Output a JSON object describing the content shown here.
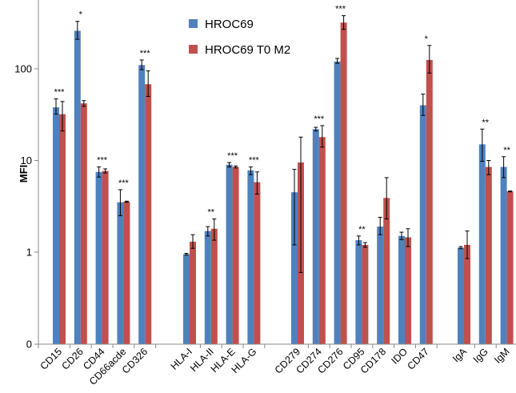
{
  "chart_data": {
    "type": "bar",
    "title": "",
    "xlabel": "",
    "ylabel": "MFI",
    "yscale": "log",
    "ylim": [
      0.1,
      400
    ],
    "yticks": [
      0.1,
      1,
      10,
      100
    ],
    "ytick_labels": [
      "0",
      "1",
      "10",
      "100"
    ],
    "grid": false,
    "legend_position": "top-center",
    "categories": [
      "CD15",
      "CD26",
      "CD44",
      "CD66acde",
      "CD326",
      "HLA-I",
      "HLA-II",
      "HLA-E",
      "HLA-G",
      "CD279",
      "CD274",
      "CD276",
      "CD95",
      "CD178",
      "IDO",
      "CD47",
      "IgA",
      "IgG",
      "IgM"
    ],
    "groups": [
      [
        "CD15",
        "CD26",
        "CD44",
        "CD66acde",
        "CD326"
      ],
      [
        "HLA-I",
        "HLA-II",
        "HLA-E",
        "HLA-G"
      ],
      [
        "CD279",
        "CD274",
        "CD276",
        "CD95",
        "CD178",
        "IDO",
        "CD47"
      ],
      [
        "IgA",
        "IgG",
        "IgM"
      ]
    ],
    "series": [
      {
        "name": "HROC69",
        "color": "#4F81BD",
        "values": [
          38,
          260,
          7.5,
          3.5,
          110,
          0.95,
          1.7,
          9,
          7.8,
          4.5,
          22,
          120,
          1.35,
          1.9,
          1.5,
          40,
          1.12,
          15,
          8.5
        ],
        "err_high": [
          47,
          330,
          8.5,
          4.8,
          125,
          0.97,
          1.9,
          9.5,
          8.5,
          8,
          23,
          130,
          1.5,
          2.4,
          1.65,
          53,
          1.15,
          22,
          11
        ],
        "err_low": [
          32,
          210,
          6.6,
          2.5,
          98,
          0.93,
          1.5,
          8.5,
          7,
          1.2,
          21,
          115,
          1.2,
          1.55,
          1.37,
          31,
          1.09,
          9.8,
          6.5
        ]
      },
      {
        "name": "HROC69 T0 M2",
        "color": "#C0504D",
        "values": [
          32,
          42,
          7.7,
          3.55,
          68,
          1.3,
          1.8,
          8.5,
          5.8,
          9.5,
          18,
          320,
          1.2,
          3.9,
          1.45,
          125,
          1.2,
          8.5,
          4.6
        ],
        "err_high": [
          44,
          45,
          8.1,
          3.6,
          95,
          1.55,
          2.3,
          8.7,
          7.5,
          18,
          24,
          380,
          1.27,
          6.5,
          1.8,
          180,
          1.7,
          10,
          4.65
        ],
        "err_low": [
          21,
          39,
          7.3,
          3.5,
          50,
          1.1,
          1.35,
          8.3,
          4.3,
          0.6,
          14,
          270,
          1.13,
          2.3,
          1.15,
          90,
          0.85,
          7,
          4.55
        ]
      }
    ],
    "annotations": [
      {
        "category": "CD15",
        "text": "***"
      },
      {
        "category": "CD26",
        "text": "*"
      },
      {
        "category": "CD44",
        "text": "***"
      },
      {
        "category": "CD66acde",
        "text": "***"
      },
      {
        "category": "CD326",
        "text": "***"
      },
      {
        "category": "HLA-II",
        "text": "**"
      },
      {
        "category": "HLA-E",
        "text": "***"
      },
      {
        "category": "HLA-G",
        "text": "***"
      },
      {
        "category": "CD274",
        "text": "***"
      },
      {
        "category": "CD276",
        "text": "***"
      },
      {
        "category": "CD95",
        "text": "**"
      },
      {
        "category": "CD47",
        "text": "*"
      },
      {
        "category": "IgG",
        "text": "**"
      },
      {
        "category": "IgM",
        "text": "**"
      }
    ]
  }
}
